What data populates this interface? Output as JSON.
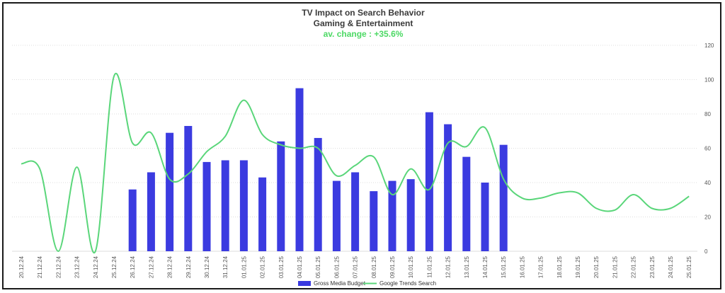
{
  "chart_data": {
    "type": "bar",
    "title": "TV Impact on Search Behavior",
    "subtitle": "Gaming & Entertainment",
    "annotation": "av. change : +35.6%",
    "categories": [
      "20.12.24",
      "21.12.24",
      "22.12.24",
      "23.12.24",
      "24.12.24",
      "25.12.24",
      "26.12.24",
      "27.12.24",
      "28.12.24",
      "29.12.24",
      "30.12.24",
      "31.12.24",
      "01.01.25",
      "02.01.25",
      "03.01.25",
      "04.01.25",
      "05.01.25",
      "06.01.25",
      "07.01.25",
      "08.01.25",
      "09.01.25",
      "10.01.25",
      "11.01.25",
      "12.01.25",
      "13.01.25",
      "14.01.25",
      "15.01.25",
      "16.01.25",
      "17.01.25",
      "18.01.25",
      "19.01.25",
      "20.01.25",
      "21.01.25",
      "22.01.25",
      "23.01.25",
      "24.01.25",
      "25.01.25"
    ],
    "series": [
      {
        "name": "Gross Media Budget",
        "type": "bar",
        "color": "#3b3be0",
        "values": [
          null,
          null,
          null,
          null,
          null,
          null,
          36,
          46,
          69,
          73,
          52,
          53,
          53,
          43,
          64,
          95,
          66,
          41,
          46,
          35,
          41,
          42,
          81,
          74,
          55,
          40,
          62,
          null,
          null,
          null,
          null,
          null,
          null,
          null,
          null,
          null,
          null
        ]
      },
      {
        "name": "Google Trends Search",
        "type": "line",
        "color": "#5ad67a",
        "values": [
          51,
          48,
          0,
          49,
          0,
          102,
          63,
          69,
          42,
          45,
          58,
          67,
          88,
          68,
          62,
          60,
          60,
          44,
          50,
          55,
          33,
          48,
          36,
          63,
          61,
          72,
          42,
          31,
          31,
          34,
          34,
          25,
          24,
          33,
          25,
          25,
          32
        ]
      }
    ],
    "yaxis_right": {
      "min": 0,
      "max": 120,
      "ticks": [
        0,
        20,
        40,
        60,
        80,
        100,
        120
      ]
    },
    "grid": true,
    "legend": "bottom"
  }
}
